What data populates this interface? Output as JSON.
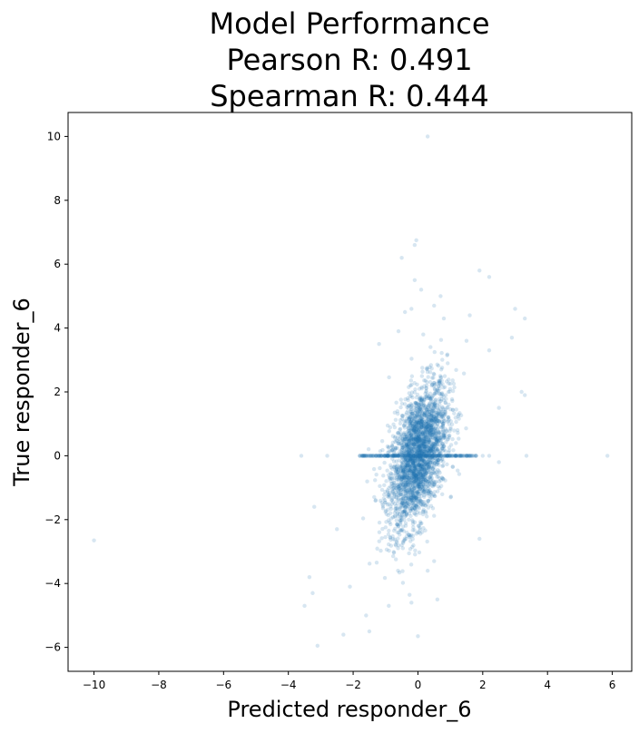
{
  "chart_data": {
    "type": "scatter",
    "title_lines": [
      "Model Performance",
      "Pearson R: 0.491",
      "Spearman R: 0.444"
    ],
    "xlabel": "Predicted responder_6",
    "ylabel": "True responder_6",
    "xlim": [
      -10.8,
      6.6
    ],
    "ylim": [
      -6.75,
      10.75
    ],
    "xticks": [
      -10,
      -8,
      -6,
      -4,
      -2,
      0,
      2,
      4,
      6
    ],
    "yticks": [
      -6,
      -4,
      -2,
      0,
      2,
      4,
      6,
      8,
      10
    ],
    "xtick_labels": [
      "−10",
      "−8",
      "−6",
      "−4",
      "−2",
      "0",
      "2",
      "4",
      "6"
    ],
    "ytick_labels": [
      "−6",
      "−4",
      "−2",
      "0",
      "2",
      "4",
      "6",
      "8",
      "10"
    ],
    "grid": false,
    "point_color": "#1f77b4",
    "point_alpha": 0.18,
    "cluster": {
      "center_x": 0.0,
      "center_y": 0.0,
      "x_spread": 0.45,
      "y_spread": 1.15,
      "correlation": 0.49,
      "count": 2600
    },
    "points": [
      {
        "x": -10.0,
        "y": -2.65
      },
      {
        "x": 0.3,
        "y": 10.0
      },
      {
        "x": 5.85,
        "y": 0.0
      },
      {
        "x": 3.35,
        "y": 0.0
      },
      {
        "x": -3.6,
        "y": 0.0
      },
      {
        "x": -3.5,
        "y": -4.7
      },
      {
        "x": -3.2,
        "y": -1.6
      },
      {
        "x": -3.35,
        "y": -3.8
      },
      {
        "x": -3.25,
        "y": -4.3
      },
      {
        "x": -3.1,
        "y": -5.95
      },
      {
        "x": -2.8,
        "y": 0.0
      },
      {
        "x": -2.5,
        "y": -2.3
      },
      {
        "x": -2.3,
        "y": -5.6
      },
      {
        "x": -2.1,
        "y": -4.1
      },
      {
        "x": -1.6,
        "y": -5.0
      },
      {
        "x": -1.5,
        "y": -5.5
      },
      {
        "x": -0.9,
        "y": -4.7
      },
      {
        "x": -0.2,
        "y": -4.6
      },
      {
        "x": 0.0,
        "y": -5.65
      },
      {
        "x": 0.3,
        "y": -3.6
      },
      {
        "x": 0.5,
        "y": -3.3
      },
      {
        "x": 0.6,
        "y": -4.5
      },
      {
        "x": 1.9,
        "y": -2.6
      },
      {
        "x": 2.5,
        "y": -0.2
      },
      {
        "x": 2.2,
        "y": 0.0
      },
      {
        "x": 2.0,
        "y": 0.0
      },
      {
        "x": 1.8,
        "y": 0.0
      },
      {
        "x": 1.5,
        "y": 0.0
      },
      {
        "x": -1.2,
        "y": 0.0
      },
      {
        "x": -1.5,
        "y": 0.0
      },
      {
        "x": -1.8,
        "y": 0.0
      },
      {
        "x": 1.9,
        "y": 5.8
      },
      {
        "x": 2.2,
        "y": 5.6
      },
      {
        "x": 3.0,
        "y": 4.6
      },
      {
        "x": 3.3,
        "y": 4.3
      },
      {
        "x": 2.9,
        "y": 3.7
      },
      {
        "x": 3.2,
        "y": 2.0
      },
      {
        "x": 3.3,
        "y": 1.9
      },
      {
        "x": 2.5,
        "y": 1.5
      },
      {
        "x": -0.05,
        "y": 6.75
      },
      {
        "x": -0.1,
        "y": 6.6
      },
      {
        "x": -0.5,
        "y": 6.2
      },
      {
        "x": -0.1,
        "y": 5.5
      },
      {
        "x": 0.1,
        "y": 5.2
      },
      {
        "x": 0.7,
        "y": 5.0
      },
      {
        "x": 0.5,
        "y": 4.7
      },
      {
        "x": -0.4,
        "y": 4.5
      },
      {
        "x": 0.8,
        "y": 4.3
      },
      {
        "x": 1.6,
        "y": 4.4
      },
      {
        "x": -1.2,
        "y": 3.5
      },
      {
        "x": 2.2,
        "y": 3.3
      },
      {
        "x": 1.5,
        "y": 3.6
      },
      {
        "x": -0.6,
        "y": 3.9
      },
      {
        "x": -0.2,
        "y": 4.6
      }
    ]
  }
}
